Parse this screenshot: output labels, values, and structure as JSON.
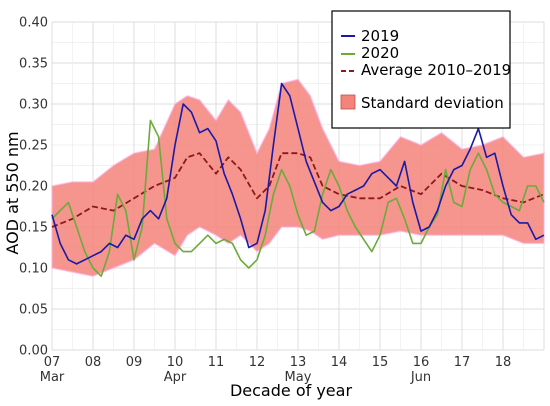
{
  "chart_data": {
    "type": "line",
    "xlabel": "Decade of year",
    "ylabel": "AOD at 550 nm",
    "xlim": [
      7,
      19
    ],
    "ylim": [
      0,
      0.4
    ],
    "x_ticks": [
      "07",
      "08",
      "09",
      "10",
      "11",
      "12",
      "13",
      "14",
      "15",
      "16",
      "17",
      "18"
    ],
    "month_labels": [
      {
        "x": 7,
        "label": "Mar"
      },
      {
        "x": 10,
        "label": "Apr"
      },
      {
        "x": 13,
        "label": "May"
      },
      {
        "x": 16,
        "label": "Jun"
      }
    ],
    "y_ticks": [
      "0.00",
      "0.05",
      "0.10",
      "0.15",
      "0.20",
      "0.25",
      "0.30",
      "0.35",
      "0.40"
    ],
    "grid": true,
    "legend_position": "top-right",
    "series": [
      {
        "name": "2019",
        "color": "#1a1aa6",
        "style": "solid",
        "x": [
          7.0,
          7.2,
          7.4,
          7.6,
          7.8,
          8.0,
          8.2,
          8.4,
          8.6,
          8.8,
          9.0,
          9.2,
          9.4,
          9.6,
          9.8,
          10.0,
          10.2,
          10.4,
          10.6,
          10.8,
          11.0,
          11.2,
          11.4,
          11.6,
          11.8,
          12.0,
          12.2,
          12.4,
          12.6,
          12.8,
          13.0,
          13.2,
          13.4,
          13.6,
          13.8,
          14.0,
          14.2,
          14.4,
          14.6,
          14.8,
          15.0,
          15.2,
          15.4,
          15.6,
          15.8,
          16.0,
          16.2,
          16.4,
          16.6,
          16.8,
          17.0,
          17.2,
          17.4,
          17.6,
          17.8,
          18.0,
          18.2,
          18.4,
          18.6,
          18.8,
          19.0
        ],
        "y": [
          0.165,
          0.13,
          0.11,
          0.105,
          0.11,
          0.115,
          0.12,
          0.13,
          0.125,
          0.14,
          0.135,
          0.16,
          0.17,
          0.16,
          0.185,
          0.25,
          0.3,
          0.29,
          0.265,
          0.27,
          0.255,
          0.215,
          0.19,
          0.16,
          0.125,
          0.13,
          0.17,
          0.25,
          0.325,
          0.31,
          0.27,
          0.23,
          0.205,
          0.18,
          0.17,
          0.175,
          0.19,
          0.195,
          0.2,
          0.215,
          0.22,
          0.21,
          0.2,
          0.23,
          0.18,
          0.145,
          0.15,
          0.17,
          0.2,
          0.22,
          0.225,
          0.245,
          0.27,
          0.235,
          0.24,
          0.2,
          0.165,
          0.155,
          0.155,
          0.135,
          0.14
        ]
      },
      {
        "name": "2020",
        "color": "#6bab3a",
        "style": "solid",
        "x": [
          7.0,
          7.2,
          7.4,
          7.6,
          7.8,
          8.0,
          8.2,
          8.4,
          8.6,
          8.8,
          9.0,
          9.2,
          9.4,
          9.6,
          9.8,
          10.0,
          10.2,
          10.4,
          10.6,
          10.8,
          11.0,
          11.2,
          11.4,
          11.6,
          11.8,
          12.0,
          12.2,
          12.4,
          12.6,
          12.8,
          13.0,
          13.2,
          13.4,
          13.6,
          13.8,
          14.0,
          14.2,
          14.4,
          14.6,
          14.8,
          15.0,
          15.2,
          15.4,
          15.6,
          15.8,
          16.0,
          16.2,
          16.4,
          16.6,
          16.8,
          17.0,
          17.2,
          17.4,
          17.6,
          17.8,
          18.0,
          18.2,
          18.4,
          18.6,
          18.8,
          19.0
        ],
        "y": [
          0.16,
          0.17,
          0.18,
          0.15,
          0.12,
          0.1,
          0.09,
          0.12,
          0.19,
          0.17,
          0.11,
          0.15,
          0.28,
          0.26,
          0.16,
          0.13,
          0.12,
          0.12,
          0.13,
          0.14,
          0.13,
          0.135,
          0.13,
          0.11,
          0.1,
          0.11,
          0.14,
          0.19,
          0.22,
          0.2,
          0.165,
          0.14,
          0.145,
          0.19,
          0.22,
          0.2,
          0.17,
          0.15,
          0.135,
          0.12,
          0.14,
          0.18,
          0.185,
          0.16,
          0.13,
          0.13,
          0.15,
          0.165,
          0.22,
          0.18,
          0.175,
          0.22,
          0.24,
          0.22,
          0.19,
          0.18,
          0.175,
          0.17,
          0.2,
          0.2,
          0.18
        ]
      },
      {
        "name": "Average 2010–2019",
        "color": "#8b1a1a",
        "style": "dashed",
        "x": [
          7.0,
          7.5,
          8.0,
          8.5,
          9.0,
          9.5,
          10.0,
          10.3,
          10.6,
          11.0,
          11.3,
          11.6,
          12.0,
          12.3,
          12.6,
          13.0,
          13.3,
          13.6,
          14.0,
          14.5,
          15.0,
          15.5,
          16.0,
          16.5,
          17.0,
          17.5,
          18.0,
          18.5,
          19.0
        ],
        "y": [
          0.15,
          0.16,
          0.175,
          0.17,
          0.185,
          0.2,
          0.21,
          0.235,
          0.24,
          0.215,
          0.235,
          0.22,
          0.185,
          0.2,
          0.24,
          0.24,
          0.235,
          0.2,
          0.19,
          0.185,
          0.185,
          0.2,
          0.19,
          0.215,
          0.2,
          0.195,
          0.185,
          0.18,
          0.19
        ]
      }
    ],
    "band": {
      "name": "Standard deviation",
      "color": "#f4837a",
      "x": [
        7.0,
        7.5,
        8.0,
        8.5,
        9.0,
        9.5,
        10.0,
        10.3,
        10.6,
        11.0,
        11.3,
        11.6,
        12.0,
        12.3,
        12.6,
        13.0,
        13.3,
        13.6,
        14.0,
        14.5,
        15.0,
        15.5,
        16.0,
        16.5,
        17.0,
        17.5,
        18.0,
        18.5,
        19.0
      ],
      "upper": [
        0.2,
        0.205,
        0.205,
        0.225,
        0.24,
        0.245,
        0.3,
        0.31,
        0.305,
        0.28,
        0.305,
        0.29,
        0.24,
        0.27,
        0.325,
        0.33,
        0.31,
        0.27,
        0.23,
        0.225,
        0.23,
        0.26,
        0.25,
        0.265,
        0.245,
        0.25,
        0.26,
        0.235,
        0.24
      ],
      "lower": [
        0.1,
        0.095,
        0.09,
        0.1,
        0.11,
        0.13,
        0.115,
        0.14,
        0.15,
        0.14,
        0.13,
        0.14,
        0.12,
        0.13,
        0.15,
        0.15,
        0.145,
        0.135,
        0.14,
        0.14,
        0.14,
        0.145,
        0.14,
        0.14,
        0.14,
        0.14,
        0.14,
        0.13,
        0.13
      ]
    }
  }
}
